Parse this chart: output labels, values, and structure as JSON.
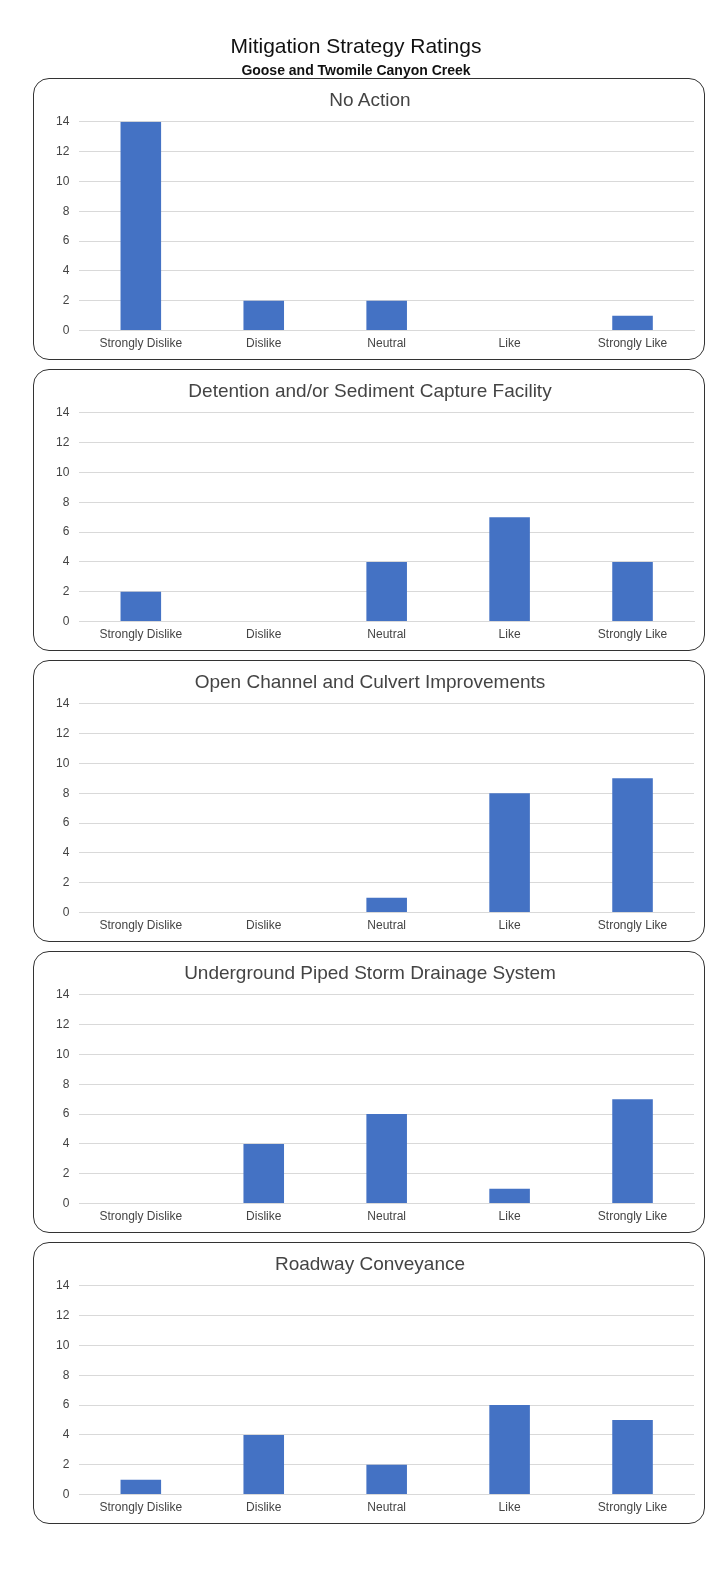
{
  "chart_data": [
    {
      "type": "other",
      "title": "Mitigation Strategy Ratings",
      "subtitle": "Goose and Twomile Canyon Creek"
    },
    {
      "type": "bar",
      "title": "No Action",
      "categories": [
        "Strongly Dislike",
        "Dislike",
        "Neutral",
        "Like",
        "Strongly Like"
      ],
      "values": [
        14,
        2,
        2,
        0,
        1
      ],
      "color": "#4472c4",
      "ylim": [
        0,
        14
      ],
      "yticks": [
        0,
        2,
        4,
        6,
        8,
        10,
        12,
        14
      ],
      "grid": "y",
      "legend": false
    },
    {
      "type": "bar",
      "title": "Detention and/or Sediment Capture Facility",
      "categories": [
        "Strongly Dislike",
        "Dislike",
        "Neutral",
        "Like",
        "Strongly Like"
      ],
      "values": [
        2,
        0,
        4,
        7,
        4
      ],
      "color": "#4472c4",
      "ylim": [
        0,
        14
      ],
      "yticks": [
        0,
        2,
        4,
        6,
        8,
        10,
        12,
        14
      ],
      "grid": "y",
      "legend": false
    },
    {
      "type": "bar",
      "title": "Open Channel and Culvert Improvements",
      "categories": [
        "Strongly Dislike",
        "Dislike",
        "Neutral",
        "Like",
        "Strongly Like"
      ],
      "values": [
        0,
        0,
        1,
        8,
        9
      ],
      "color": "#4472c4",
      "ylim": [
        0,
        14
      ],
      "yticks": [
        0,
        2,
        4,
        6,
        8,
        10,
        12,
        14
      ],
      "grid": "y",
      "legend": false
    },
    {
      "type": "bar",
      "title": "Underground Piped Storm Drainage System",
      "categories": [
        "Strongly Dislike",
        "Dislike",
        "Neutral",
        "Like",
        "Strongly Like"
      ],
      "values": [
        0,
        4,
        6,
        1,
        7
      ],
      "color": "#4472c4",
      "ylim": [
        0,
        14
      ],
      "yticks": [
        0,
        2,
        4,
        6,
        8,
        10,
        12,
        14
      ],
      "grid": "y",
      "legend": false
    },
    {
      "type": "bar",
      "title": "Roadway Conveyance",
      "categories": [
        "Strongly Dislike",
        "Dislike",
        "Neutral",
        "Like",
        "Strongly Like"
      ],
      "values": [
        1,
        4,
        2,
        6,
        5
      ],
      "color": "#4472c4",
      "ylim": [
        0,
        14
      ],
      "yticks": [
        0,
        2,
        4,
        6,
        8,
        10,
        12,
        14
      ],
      "grid": "y",
      "legend": false
    }
  ]
}
